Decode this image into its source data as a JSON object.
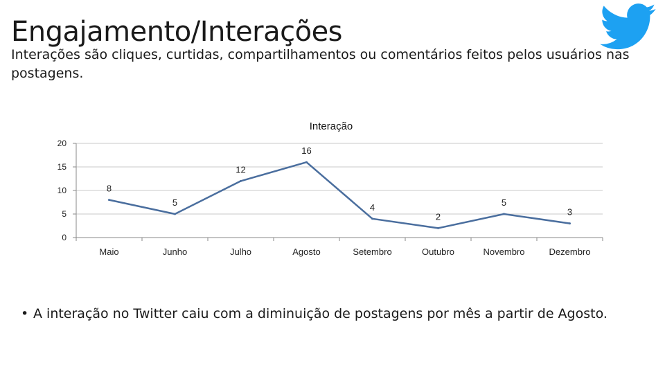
{
  "header": {
    "title": "Engajamento/Interações",
    "subtitle": "Interações são cliques, curtidas, compartilhamentos ou comentários feitos pelos usuários nas postagens.",
    "logo_icon": "twitter-bird-icon",
    "logo_color": "#1da1f2"
  },
  "chart_data": {
    "type": "line",
    "title": "Interação",
    "categories": [
      "Maio",
      "Junho",
      "Julho",
      "Agosto",
      "Setembro",
      "Outubro",
      "Novembro",
      "Dezembro"
    ],
    "series": [
      {
        "values": [
          8,
          5,
          12,
          16,
          4,
          2,
          5,
          3
        ],
        "color": "#4a6e9e"
      }
    ],
    "y_ticks": [
      0,
      5,
      10,
      15,
      20
    ],
    "ylim": [
      0,
      20
    ],
    "grid": true,
    "legend": "none",
    "data_labels": true
  },
  "notes": {
    "bullet": "A interação no Twitter caiu com a diminuição de postagens por mês a partir de Agosto."
  }
}
